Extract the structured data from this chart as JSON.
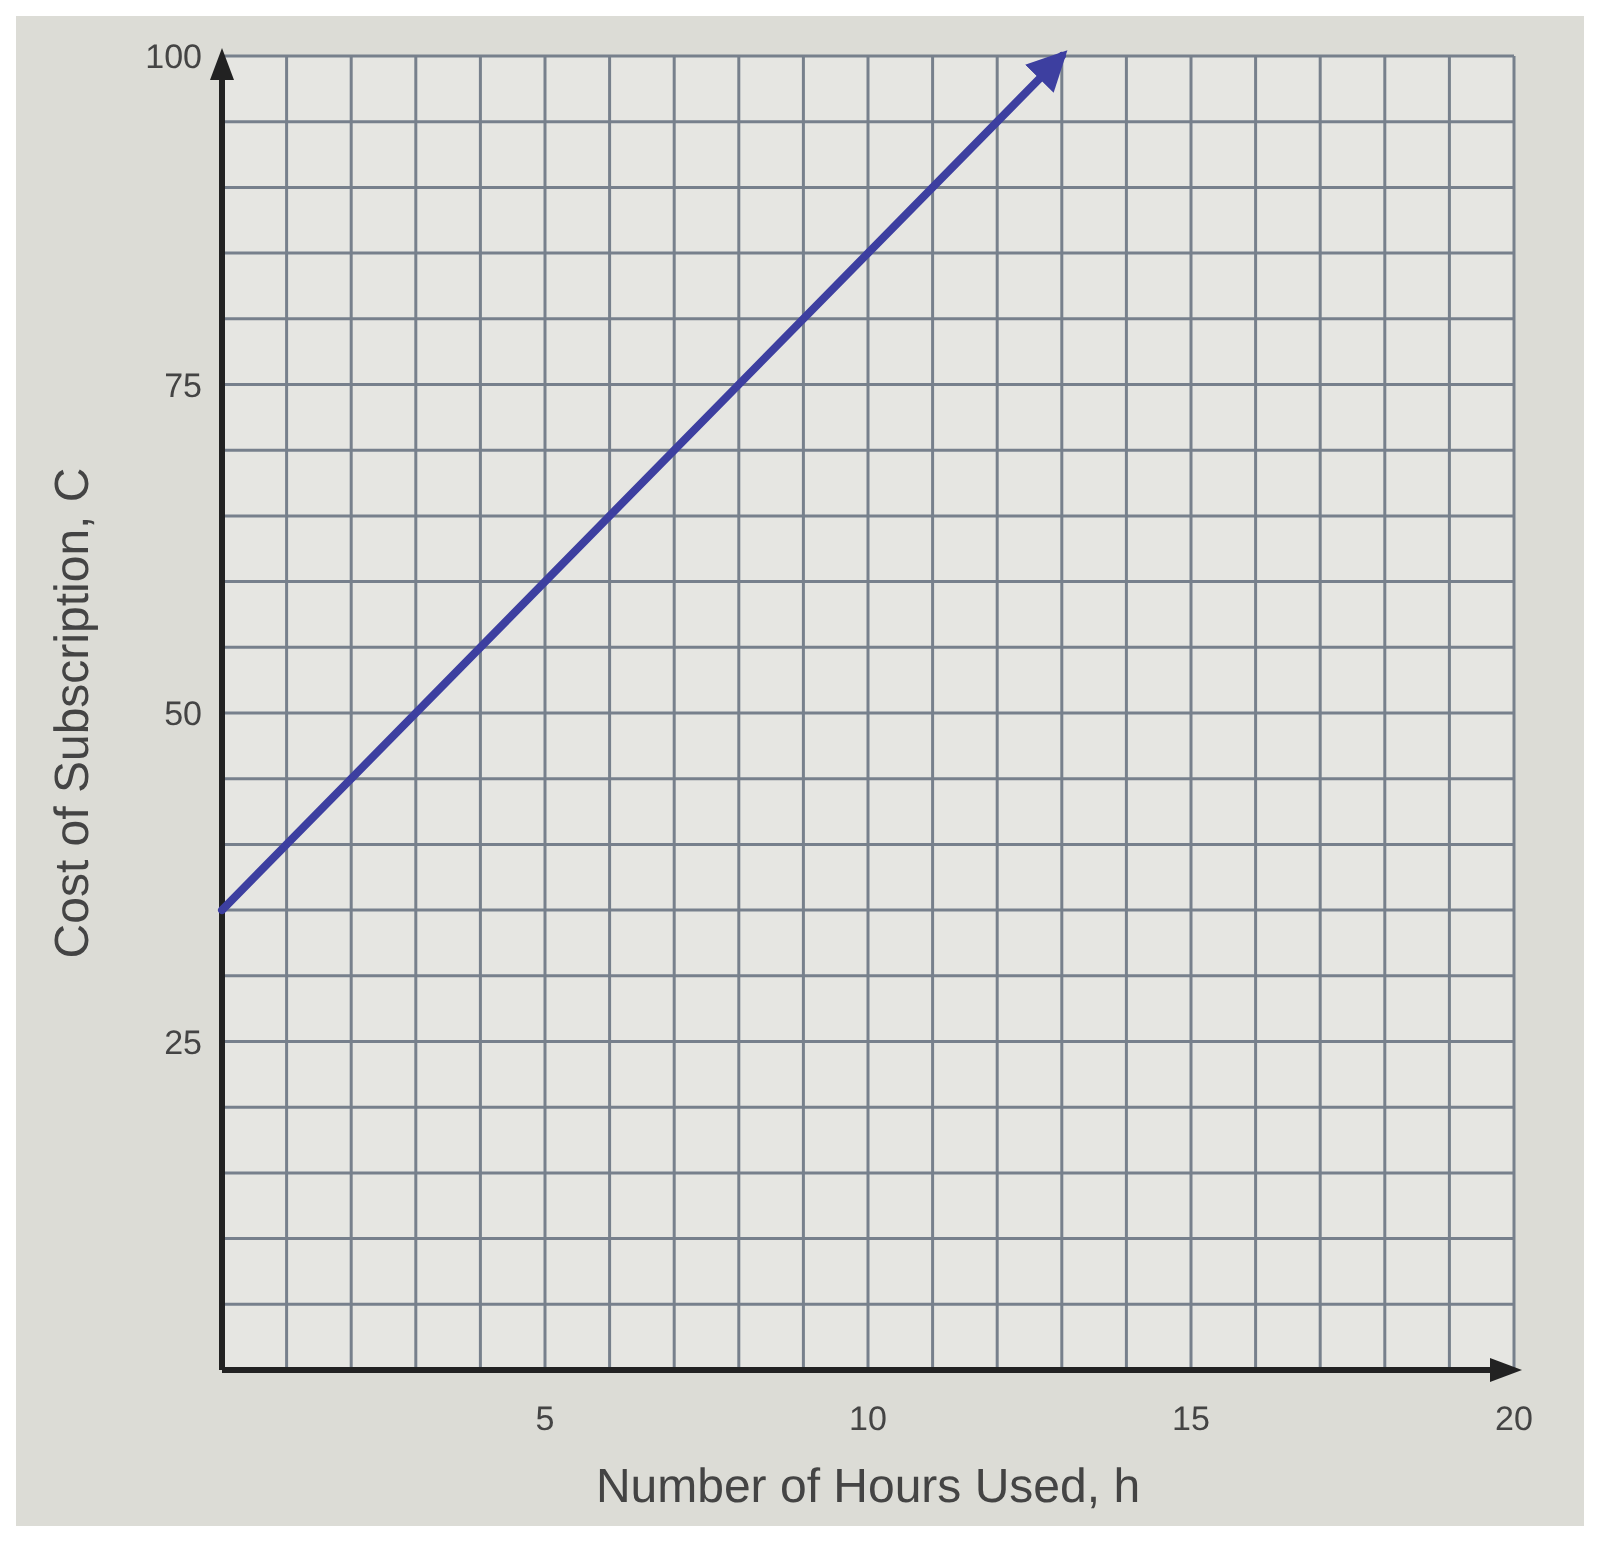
{
  "chart_data": {
    "type": "line",
    "xlabel": "Number of Hours Used, h",
    "ylabel": "Cost of Subscription, C",
    "xlim": [
      0,
      20
    ],
    "ylim": [
      0,
      100
    ],
    "xticks": [
      5,
      10,
      15,
      20
    ],
    "yticks": [
      25,
      50,
      75,
      100
    ],
    "grid": true,
    "marker": "none",
    "line_style": "solid",
    "series": [
      {
        "color": "#3d3fa0",
        "x": [
          0,
          13
        ],
        "values": [
          35,
          100
        ]
      }
    ]
  }
}
